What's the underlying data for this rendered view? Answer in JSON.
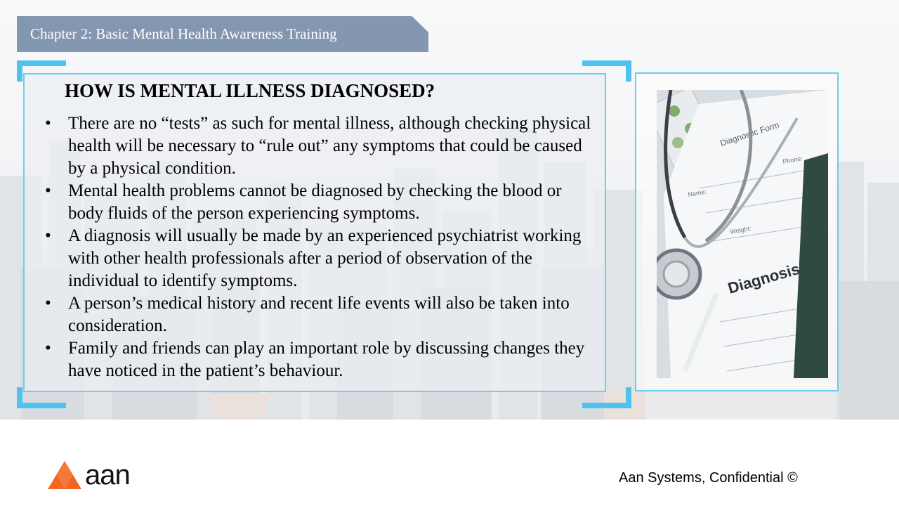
{
  "chapter_title": "Chapter 2: Basic Mental Health Awareness Training",
  "slide_title": "HOW IS MENTAL ILLNESS DIAGNOSED?",
  "bullets": [
    "There are no “tests” as such for mental illness, although checking physical health will be necessary to “rule out” any symptoms that could be caused by a physical condition.",
    "Mental health problems cannot be diagnosed by checking the blood or body fluids of the person experiencing symptoms.",
    "A diagnosis will usually be made by an experienced psychiatrist working with other health professionals after a period of observation of the individual to identify symptoms.",
    "A person’s medical history and recent life events will also be taken into consideration.",
    "Family and friends can play an important role by discussing changes they have noticed in the patient’s behaviour."
  ],
  "image": {
    "form_title": "Diagnostic Form",
    "form_field_name": "Name:",
    "form_field_phone": "Phone:",
    "form_field_weight": "Weight:",
    "heading": "Diagnosis"
  },
  "logo": {
    "text": "aan"
  },
  "footer": {
    "text": "Aan Systems, Confidential ©"
  },
  "colors": {
    "banner": "#8497b0",
    "frame_border": "#6ccdf0",
    "corner_accent": "#4fc3ee",
    "logo_orange": "#f26522"
  }
}
